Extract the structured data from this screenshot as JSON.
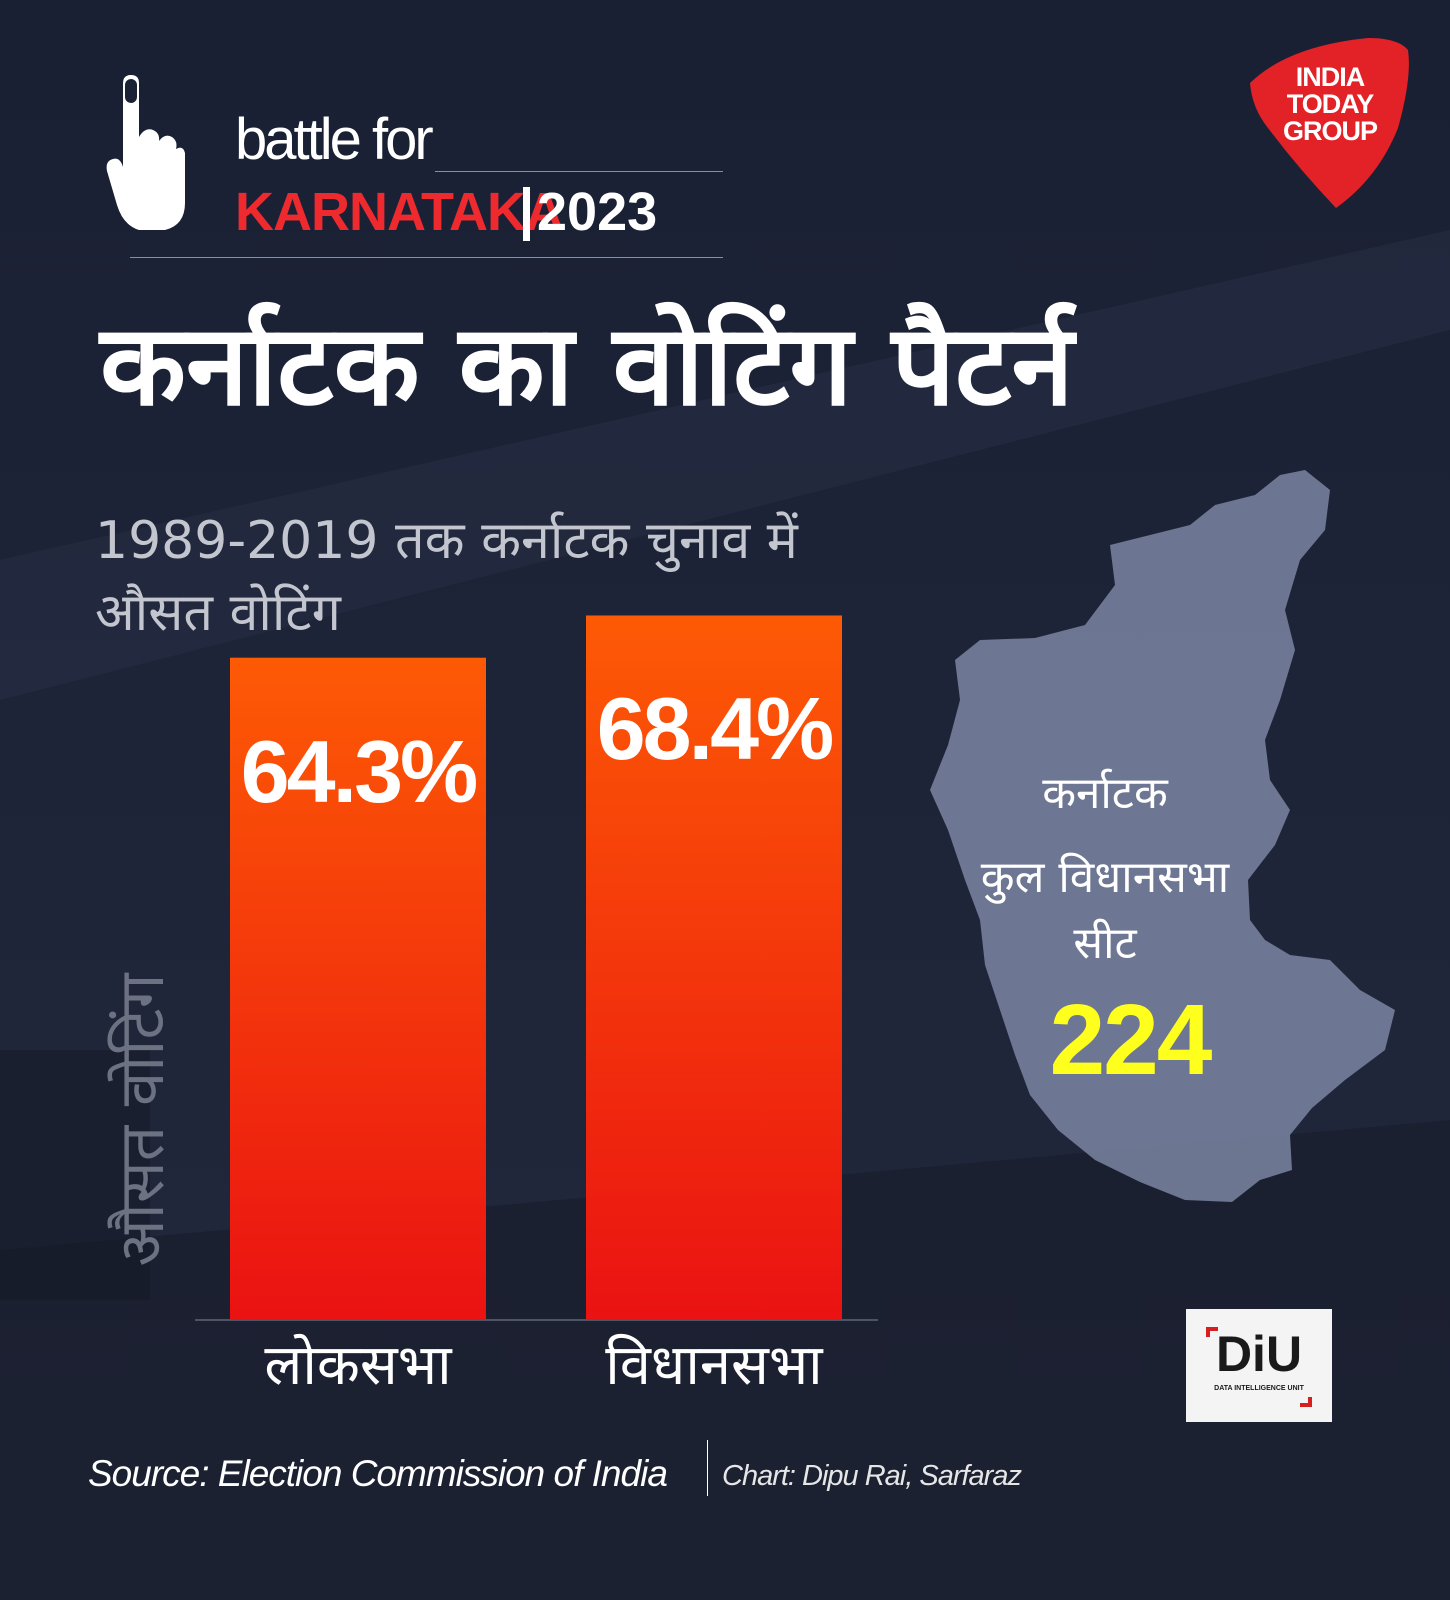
{
  "brand": {
    "line1": "battle for",
    "state": "KARNATAKA",
    "year": "2023"
  },
  "logo": {
    "line1": "INDIA",
    "line2": "TODAY",
    "line3": "GROUP",
    "color": "#e32228"
  },
  "title": "कर्नाटक का वोटिंग पैटर्न",
  "subtitle": "1989-2019 तक कर्नाटक चुनाव में औसत वोटिंग",
  "chart_data": {
    "type": "bar",
    "categories": [
      "लोकसभा",
      "विधानसभा"
    ],
    "values": [
      64.3,
      68.4
    ],
    "value_labels": [
      "64.3%",
      "68.4%"
    ],
    "ylabel": "औसत वोटिंग",
    "ylim": [
      0,
      100
    ],
    "grid": false,
    "bar_color_top": "#fd5a05",
    "bar_color_bottom": "#ea1212"
  },
  "map": {
    "name": "कर्नाटक",
    "label_line1": "कुल विधानसभा",
    "label_line2": "सीट",
    "seats": "224",
    "seats_color": "#ffff1e"
  },
  "diu": {
    "letters": "DiU",
    "subtitle": "DATA INTELLIGENCE UNIT"
  },
  "footer": {
    "source": "Source: Election Commission of India",
    "credit": "Chart: Dipu Rai, Sarfaraz"
  }
}
